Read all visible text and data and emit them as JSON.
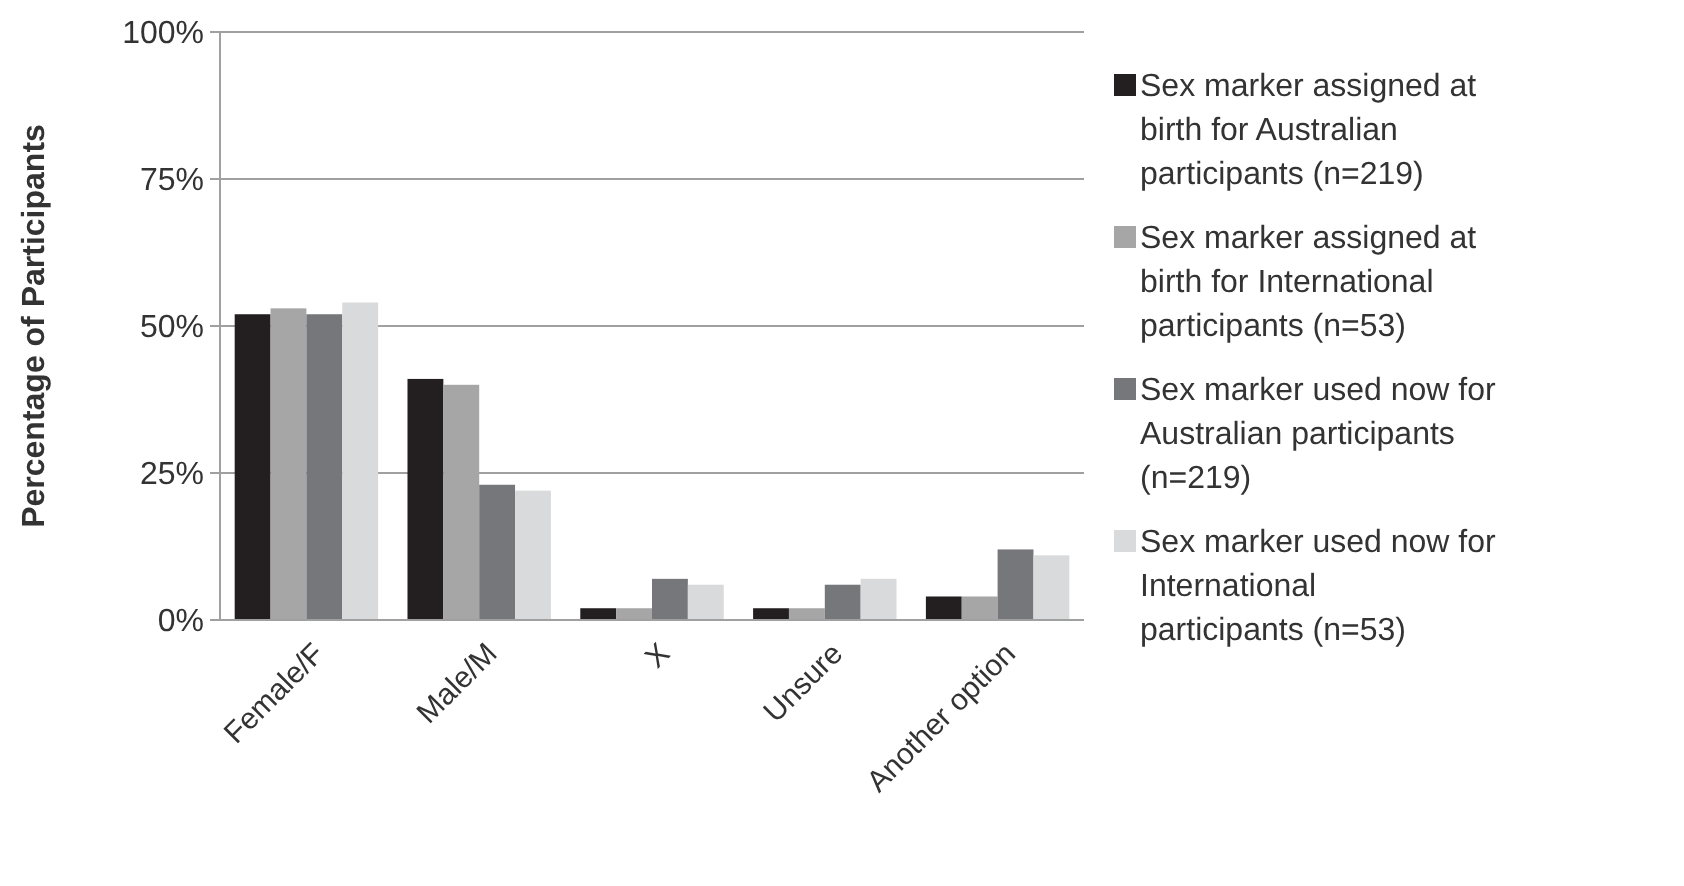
{
  "chart_data": {
    "type": "bar",
    "ylabel": "Percentage of Participants",
    "categories": [
      "Female/F",
      "Male/M",
      "X",
      "Unsure",
      "Another option"
    ],
    "series": [
      {
        "name": "Sex marker assigned at birth for Australian participants (n=219)",
        "color": "#231f20",
        "values": [
          52,
          41,
          2,
          2,
          4
        ]
      },
      {
        "name": "Sex marker assigned at birth for International participants (n=53)",
        "color": "#a6a6a6",
        "values": [
          53,
          40,
          2,
          2,
          4
        ]
      },
      {
        "name": "Sex marker used now for Australian participants (n=219)",
        "color": "#76777a",
        "values": [
          52,
          23,
          7,
          6,
          12
        ]
      },
      {
        "name": "Sex marker used now for International participants (n=53)",
        "color": "#d9dadb",
        "values": [
          54,
          22,
          6,
          7,
          11
        ]
      }
    ],
    "ylim": [
      0,
      100
    ],
    "yticks": [
      {
        "value": 0,
        "label": "0%"
      },
      {
        "value": 25,
        "label": "25%"
      },
      {
        "value": 50,
        "label": "50%"
      },
      {
        "value": 75,
        "label": "75%"
      },
      {
        "value": 100,
        "label": "100%"
      }
    ],
    "grid": "y",
    "legend": "right"
  }
}
